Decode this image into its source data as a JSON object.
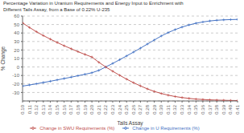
{
  "chart_data": {
    "type": "line",
    "title": "Percentage Variation in Uranium Requirements and Energy Input to Enrichment with\nDifferent Tails Assay, from a Base of 0.22% U-235",
    "x_label": "Tails Assay",
    "y_label": "% Change",
    "x": [
      0.1,
      0.11,
      0.12,
      0.13,
      0.14,
      0.15,
      0.16,
      0.17,
      0.18,
      0.19,
      0.2,
      0.21,
      0.22,
      0.23,
      0.24,
      0.25,
      0.26,
      0.27,
      0.28,
      0.29,
      0.3,
      0.31,
      0.32,
      0.33,
      0.34,
      0.35,
      0.36,
      0.37,
      0.38,
      0.39,
      0.4,
      0.41
    ],
    "series": [
      {
        "name": "Change in U Requirements (%)",
        "color": "#4472c4",
        "marker": "plus",
        "values": [
          -22.5,
          -21.2,
          -19.8,
          -18.3,
          -16.8,
          -15.2,
          -13.6,
          -12.0,
          -10.3,
          -8.6,
          -6.8,
          -4.0,
          0.0,
          4.2,
          8.5,
          13.0,
          17.5,
          22.2,
          27.0,
          31.8,
          36.5,
          40.5,
          44.0,
          47.0,
          49.5,
          51.5,
          53.0,
          54.2,
          55.0,
          55.5,
          55.8,
          56.0
        ]
      },
      {
        "name": "Change in SWU Requirements (%)",
        "color": "#c0504d",
        "marker": "plus",
        "values": [
          52.0,
          46.5,
          41.5,
          37.0,
          32.8,
          28.8,
          25.0,
          21.5,
          18.0,
          14.8,
          11.7,
          5.5,
          0.0,
          -5.0,
          -9.8,
          -14.3,
          -18.5,
          -22.3,
          -25.8,
          -28.8,
          -31.2,
          -33.2,
          -34.8,
          -36.0,
          -37.0,
          -37.8,
          -38.3,
          -38.7,
          -39.0,
          -39.2,
          -39.4,
          -39.5
        ]
      }
    ],
    "xlim": [
      0.1,
      0.41
    ],
    "xticks": [
      {
        "value": 0.1,
        "label": "0.10"
      },
      {
        "value": 0.11,
        "label": "0.11"
      },
      {
        "value": 0.12,
        "label": "0.12"
      },
      {
        "value": 0.13,
        "label": "0.13"
      },
      {
        "value": 0.14,
        "label": "0.14"
      },
      {
        "value": 0.15,
        "label": "0.15"
      },
      {
        "value": 0.16,
        "label": "0.16"
      },
      {
        "value": 0.17,
        "label": "0.17"
      },
      {
        "value": 0.18,
        "label": "0.18"
      },
      {
        "value": 0.19,
        "label": "0.19"
      },
      {
        "value": 0.2,
        "label": "0.20"
      },
      {
        "value": 0.21,
        "label": "0.21"
      },
      {
        "value": 0.22,
        "label": "0.22"
      },
      {
        "value": 0.23,
        "label": "0.23"
      },
      {
        "value": 0.24,
        "label": "0.24"
      },
      {
        "value": 0.25,
        "label": "0.25"
      },
      {
        "value": 0.26,
        "label": "0.26"
      },
      {
        "value": 0.27,
        "label": "0.27"
      },
      {
        "value": 0.28,
        "label": "0.28"
      },
      {
        "value": 0.29,
        "label": "0.29"
      },
      {
        "value": 0.3,
        "label": "0.30"
      },
      {
        "value": 0.31,
        "label": "0.31"
      },
      {
        "value": 0.32,
        "label": "0.32"
      },
      {
        "value": 0.33,
        "label": "0.33"
      },
      {
        "value": 0.34,
        "label": "0.34"
      },
      {
        "value": 0.35,
        "label": "0.35"
      },
      {
        "value": 0.36,
        "label": "0.36"
      },
      {
        "value": 0.37,
        "label": "0.37"
      },
      {
        "value": 0.38,
        "label": "0.38"
      },
      {
        "value": 0.39,
        "label": "0.39"
      },
      {
        "value": 0.4,
        "label": "0.40"
      },
      {
        "value": 0.41,
        "label": "0.41"
      }
    ],
    "ylim": [
      -40.0,
      60.0
    ],
    "yticks": [
      -30.0,
      -20.0,
      -10.0,
      0.0,
      10.0,
      20.0,
      30.0,
      40.0,
      50.0,
      60.0
    ],
    "grid": true,
    "legend": "bottom"
  }
}
